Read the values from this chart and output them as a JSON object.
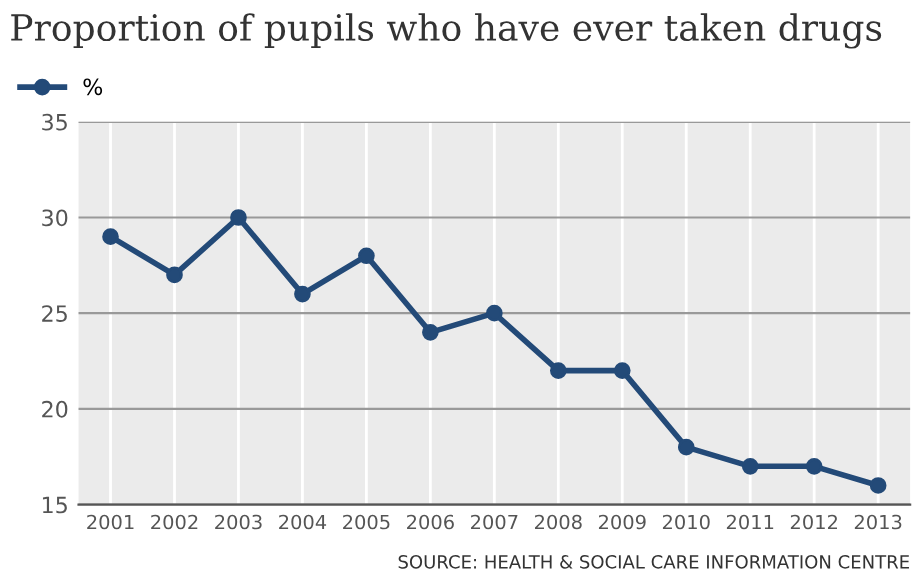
{
  "chart_data": {
    "type": "line",
    "title": "Proportion of pupils who have ever taken drugs",
    "categories": [
      "2001",
      "2002",
      "2003",
      "2004",
      "2005",
      "2006",
      "2007",
      "2008",
      "2009",
      "2010",
      "2011",
      "2012",
      "2013"
    ],
    "series": [
      {
        "name": "%",
        "color": "#234a78",
        "values": [
          29,
          27,
          30,
          26,
          28,
          24,
          25,
          22,
          22,
          18,
          17,
          17,
          16
        ]
      }
    ],
    "ylim": [
      15,
      35
    ],
    "yticks": [
      15,
      20,
      25,
      30,
      35
    ],
    "grid": true,
    "legend": "top left",
    "marker": "circle",
    "line_style": "solid",
    "annotations": [
      "SOURCE: HEALTH & SOCIAL CARE INFORMATION CENTRE"
    ]
  }
}
